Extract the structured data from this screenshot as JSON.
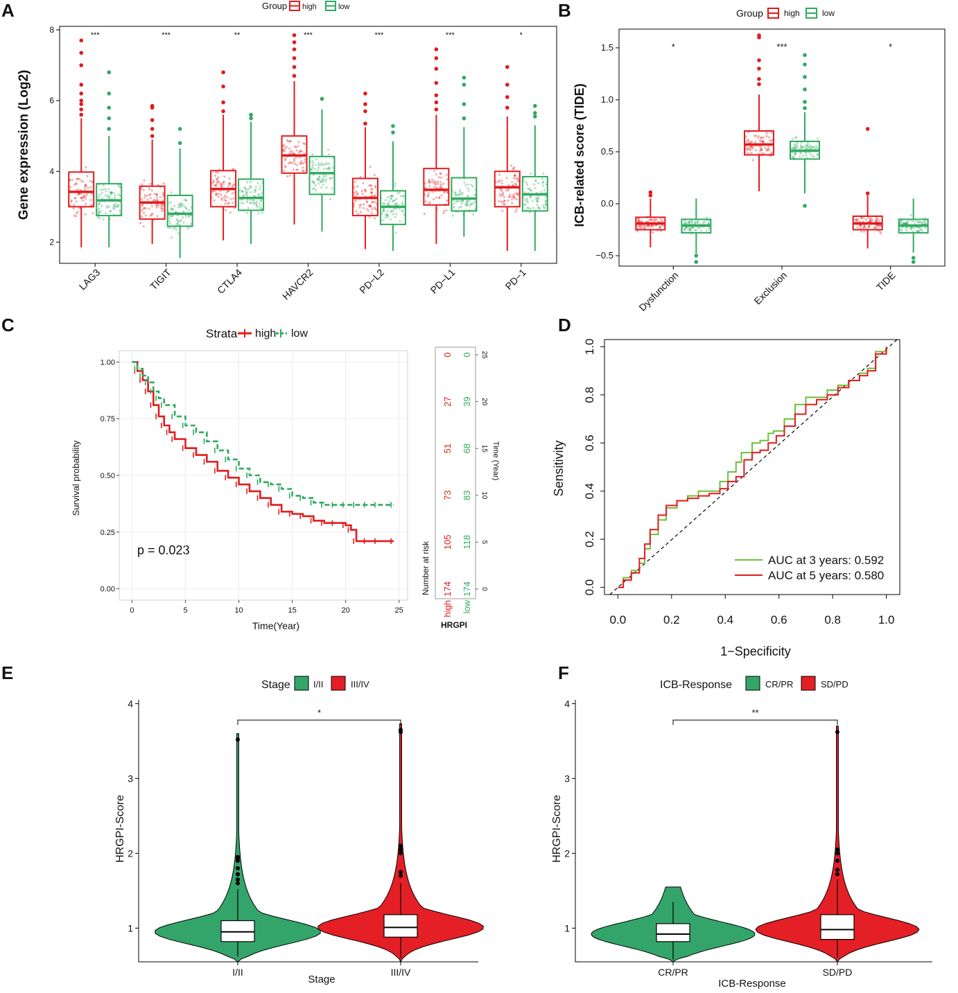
{
  "figure": {
    "panel_labels": [
      "A",
      "B",
      "C",
      "D",
      "E",
      "F"
    ]
  },
  "colors": {
    "high": "#e31a1c",
    "low": "#2eaa5e",
    "red_fill": "#e41f26",
    "green_fill": "#34a56a",
    "roc3": "#6cbf3a",
    "roc5": "#e31a1c"
  },
  "chart_data": [
    {
      "panel": "A",
      "type": "box",
      "ylabel": "Gene expression (Log2)",
      "ylim": [
        1.4,
        8.1
      ],
      "yticks": [
        2,
        4,
        6,
        8
      ],
      "legend": {
        "title": "Group",
        "entries": [
          "high",
          "low"
        ]
      },
      "categories": [
        "LAG3",
        "TIGIT",
        "CTLA4",
        "HAVCR2",
        "PD−L2",
        "PD−L1",
        "PD−1"
      ],
      "significance": [
        "***",
        "***",
        "**",
        "***",
        "***",
        "***",
        "*"
      ],
      "series": [
        {
          "name": "high",
          "q1": [
            3.0,
            2.65,
            3.0,
            3.95,
            2.75,
            3.05,
            3.0
          ],
          "median": [
            3.42,
            3.12,
            3.5,
            4.45,
            3.25,
            3.48,
            3.55
          ],
          "q3": [
            3.98,
            3.58,
            4.02,
            5.0,
            3.8,
            4.08,
            4.0
          ],
          "wmin": [
            1.85,
            1.95,
            2.05,
            2.5,
            1.8,
            1.95,
            1.75
          ],
          "wmax": [
            5.5,
            4.9,
            5.6,
            6.55,
            5.25,
            5.6,
            5.55
          ],
          "outliers": [
            [
              5.6,
              5.75,
              5.9,
              6.0,
              6.2,
              6.45,
              7.0,
              7.35,
              7.7
            ],
            [
              5.0,
              5.2,
              5.45,
              5.8,
              5.85
            ],
            [
              5.7,
              5.95,
              6.4,
              6.8
            ],
            [
              6.7,
              6.95,
              7.2,
              7.45,
              7.65,
              7.85
            ],
            [
              5.35,
              5.7,
              5.9,
              6.2
            ],
            [
              5.75,
              5.95,
              6.15,
              6.5,
              6.9,
              7.2,
              7.45
            ],
            [
              5.8,
              6.1,
              6.45,
              6.95
            ]
          ]
        },
        {
          "name": "low",
          "q1": [
            2.75,
            2.45,
            2.9,
            3.35,
            2.5,
            2.88,
            2.88
          ],
          "median": [
            3.18,
            2.8,
            3.25,
            3.95,
            3.0,
            3.23,
            3.35
          ],
          "q3": [
            3.65,
            3.32,
            3.78,
            4.42,
            3.45,
            3.82,
            3.85
          ],
          "wmin": [
            1.85,
            1.55,
            1.95,
            2.3,
            1.75,
            2.15,
            1.75
          ],
          "wmax": [
            5.0,
            4.65,
            5.4,
            5.75,
            4.85,
            5.25,
            5.3
          ],
          "outliers": [
            [
              5.2,
              5.5,
              5.8,
              6.2,
              6.8
            ],
            [
              4.8,
              5.2
            ],
            [
              5.5,
              5.6
            ],
            [
              6.05
            ],
            [
              5.1,
              5.28
            ],
            [
              5.5,
              5.9,
              6.45,
              6.65
            ],
            [
              5.55,
              5.65,
              5.85
            ]
          ]
        }
      ]
    },
    {
      "panel": "B",
      "type": "box",
      "ylabel": "ICB-related score (TIDE)",
      "ylim": [
        -0.6,
        1.68
      ],
      "yticks": [
        -0.5,
        0.0,
        0.5,
        1.0,
        1.5
      ],
      "ytick_labels": [
        "−0.5",
        "0.0",
        "0.5",
        "1.0",
        "1.5"
      ],
      "legend": {
        "title": "Group",
        "entries": [
          "high",
          "low"
        ]
      },
      "categories": [
        "Dysfunction",
        "Exclusion",
        "TIDE"
      ],
      "significance": [
        "*",
        "***",
        "*"
      ],
      "series": [
        {
          "name": "high",
          "q1": [
            -0.25,
            0.47,
            -0.25
          ],
          "median": [
            -0.19,
            0.57,
            -0.19
          ],
          "q3": [
            -0.13,
            0.7,
            -0.12
          ],
          "wmin": [
            -0.42,
            0.12,
            -0.43
          ],
          "wmax": [
            0.05,
            1.05,
            0.08
          ],
          "outliers": [
            [
              0.08,
              0.11
            ],
            [
              1.15,
              1.2,
              1.3,
              1.38,
              1.6,
              1.62
            ],
            [
              0.1,
              0.72
            ]
          ]
        },
        {
          "name": "low",
          "q1": [
            -0.28,
            0.43,
            -0.28
          ],
          "median": [
            -0.21,
            0.51,
            -0.21
          ],
          "q3": [
            -0.15,
            0.6,
            -0.15
          ],
          "wmin": [
            -0.48,
            0.1,
            -0.47
          ],
          "wmax": [
            0.05,
            0.88,
            0.05
          ],
          "outliers": [
            [
              -0.5,
              -0.56
            ],
            [
              -0.02,
              0.92,
              0.98,
              1.1,
              1.22,
              1.34,
              1.43
            ],
            [
              -0.52,
              -0.56
            ]
          ]
        }
      ]
    },
    {
      "panel": "C",
      "type": "line",
      "title": "",
      "xlabel": "Time(Year)",
      "ylabel": "Survival probability",
      "xlim": [
        -1.2,
        25.8
      ],
      "ylim": [
        -0.05,
        1.05
      ],
      "xticks": [
        0,
        5,
        10,
        15,
        20,
        25
      ],
      "yticks": [
        0.0,
        0.25,
        0.5,
        0.75,
        1.0
      ],
      "ytick_labels": [
        "0.00",
        "0.25",
        "0.50",
        "0.75",
        "1.00"
      ],
      "legend": {
        "title": "Strata",
        "entries": [
          "high",
          "low"
        ]
      },
      "pvalue": "p = 0.023",
      "series": [
        {
          "name": "high",
          "x": [
            0,
            0.5,
            1,
            1.5,
            2,
            2.5,
            3,
            3.5,
            4,
            5,
            6,
            7,
            8,
            9,
            10,
            11,
            12,
            13,
            14,
            15,
            16,
            17,
            18,
            19,
            20,
            20.5,
            21,
            22,
            23,
            24.5
          ],
          "y": [
            1.0,
            0.96,
            0.92,
            0.87,
            0.81,
            0.76,
            0.72,
            0.69,
            0.66,
            0.62,
            0.59,
            0.56,
            0.52,
            0.49,
            0.46,
            0.43,
            0.4,
            0.37,
            0.34,
            0.33,
            0.32,
            0.3,
            0.29,
            0.29,
            0.28,
            0.26,
            0.21,
            0.21,
            0.21,
            0.21
          ]
        },
        {
          "name": "low",
          "x": [
            0,
            0.5,
            1,
            1.5,
            2,
            2.5,
            3,
            4,
            5,
            6,
            7,
            8,
            9,
            10,
            11,
            12,
            13,
            14,
            15,
            16,
            17,
            18,
            19,
            20,
            21,
            22,
            23,
            24.5
          ],
          "y": [
            1.0,
            0.97,
            0.94,
            0.91,
            0.87,
            0.84,
            0.81,
            0.76,
            0.72,
            0.69,
            0.65,
            0.61,
            0.57,
            0.53,
            0.5,
            0.47,
            0.46,
            0.44,
            0.41,
            0.4,
            0.38,
            0.37,
            0.37,
            0.37,
            0.37,
            0.37,
            0.37,
            0.37
          ]
        }
      ],
      "risk_table": {
        "title": "Number at risk",
        "time_label": "Time (Year)",
        "time_ticks": [
          0,
          5,
          10,
          15,
          20,
          25
        ],
        "row_labels": [
          "high",
          "low"
        ],
        "strata_label": "HRGPI",
        "high": [
          "174",
          "105",
          "73",
          "51",
          "27",
          "0"
        ],
        "low": [
          "174",
          "118",
          "83",
          "68",
          "39",
          "0"
        ]
      }
    },
    {
      "panel": "D",
      "type": "line",
      "xlabel": "1−Specificity",
      "ylabel": "Sensitivity",
      "xlim": [
        -0.05,
        1.05
      ],
      "ylim": [
        -0.03,
        1.03
      ],
      "xticks": [
        0.0,
        0.2,
        0.4,
        0.6,
        0.8,
        1.0
      ],
      "yticks": [
        0.0,
        0.2,
        0.4,
        0.6,
        0.8,
        1.0
      ],
      "tick_labels": [
        "0.0",
        "0.2",
        "0.4",
        "0.6",
        "0.8",
        "1.0"
      ],
      "series": [
        {
          "name": "AUC at 3 years: 0.592",
          "x": [
            0,
            0.02,
            0.05,
            0.08,
            0.1,
            0.12,
            0.15,
            0.18,
            0.22,
            0.26,
            0.3,
            0.34,
            0.38,
            0.41,
            0.44,
            0.46,
            0.5,
            0.53,
            0.56,
            0.58,
            0.62,
            0.66,
            0.7,
            0.74,
            0.78,
            0.82,
            0.86,
            0.9,
            0.93,
            0.96,
            1.0
          ],
          "y": [
            0,
            0.04,
            0.07,
            0.1,
            0.16,
            0.22,
            0.28,
            0.33,
            0.36,
            0.38,
            0.4,
            0.4,
            0.44,
            0.48,
            0.52,
            0.56,
            0.6,
            0.61,
            0.64,
            0.65,
            0.7,
            0.76,
            0.79,
            0.79,
            0.82,
            0.84,
            0.86,
            0.89,
            0.91,
            0.98,
            1.0
          ]
        },
        {
          "name": "AUC at 5 years: 0.580",
          "x": [
            0,
            0.02,
            0.05,
            0.08,
            0.1,
            0.12,
            0.15,
            0.18,
            0.22,
            0.26,
            0.3,
            0.34,
            0.38,
            0.41,
            0.44,
            0.47,
            0.5,
            0.53,
            0.56,
            0.59,
            0.62,
            0.66,
            0.7,
            0.74,
            0.78,
            0.82,
            0.86,
            0.9,
            0.93,
            0.96,
            1.0
          ],
          "y": [
            0,
            0.03,
            0.06,
            0.12,
            0.18,
            0.24,
            0.3,
            0.34,
            0.36,
            0.37,
            0.38,
            0.39,
            0.41,
            0.44,
            0.46,
            0.53,
            0.56,
            0.57,
            0.6,
            0.63,
            0.67,
            0.72,
            0.76,
            0.78,
            0.8,
            0.83,
            0.86,
            0.88,
            0.9,
            0.97,
            1.0
          ]
        }
      ]
    },
    {
      "panel": "E",
      "type": "violin",
      "xlabel": "Stage",
      "ylabel": "HRGPI-Score",
      "ylim": [
        0.55,
        4.05
      ],
      "yticks": [
        1,
        2,
        3,
        4
      ],
      "legend": {
        "title": "Stage",
        "entries": [
          "I/II",
          "III/IV"
        ]
      },
      "categories": [
        "I/II",
        "III/IV"
      ],
      "significance": "*",
      "groups": [
        {
          "name": "I/II",
          "q1": 0.82,
          "median": 0.95,
          "q3": 1.1,
          "wmin": 0.62,
          "wmax": 1.52,
          "outliers": [
            1.6,
            1.65,
            1.72,
            1.8,
            1.9,
            1.93,
            1.95,
            3.52
          ]
        },
        {
          "name": "III/IV",
          "q1": 0.88,
          "median": 1.01,
          "q3": 1.18,
          "wmin": 0.6,
          "wmax": 1.6,
          "outliers": [
            1.7,
            1.75,
            2.0,
            2.05,
            2.1,
            3.62,
            3.65
          ]
        }
      ]
    },
    {
      "panel": "F",
      "type": "violin",
      "xlabel": "ICB-Response",
      "ylabel": "HRGPI-Score",
      "ylim": [
        0.55,
        4.05
      ],
      "yticks": [
        1,
        2,
        3,
        4
      ],
      "legend": {
        "title": "ICB-Response",
        "entries": [
          "CR/PR",
          "SD/PD"
        ]
      },
      "categories": [
        "CR/PR",
        "SD/PD"
      ],
      "significance": "**",
      "groups": [
        {
          "name": "CR/PR",
          "q1": 0.82,
          "median": 0.92,
          "q3": 1.06,
          "wmin": 0.58,
          "wmax": 1.35
        },
        {
          "name": "SD/PD",
          "q1": 0.85,
          "median": 0.98,
          "q3": 1.18,
          "wmin": 0.6,
          "wmax": 1.65,
          "outliers": [
            1.72,
            1.78,
            1.9,
            2.0,
            2.05,
            3.62
          ]
        }
      ]
    }
  ]
}
